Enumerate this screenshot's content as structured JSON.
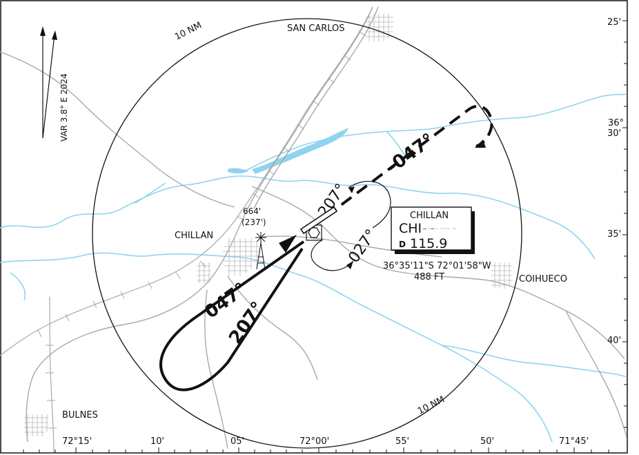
{
  "ring_labels": {
    "top": "10 NM",
    "bottom": "10 NM"
  },
  "variation": "VAR 3.8° E 2024",
  "towns": {
    "san_carlos": "SAN CARLOS",
    "chillan": "CHILLAN",
    "coihueco": "COIHUECO",
    "bulnes": "BULNES"
  },
  "obstacle": {
    "elevation": "664'",
    "height": "(237')"
  },
  "procedure": {
    "outbound_course": "047°",
    "inbound_course": "207°",
    "hold_inbound": "207°",
    "hold_outbound": "027°",
    "missed_course": "-047°"
  },
  "navaid": {
    "name": "CHILLAN",
    "ident": "CHI",
    "morse": "−·−· ···· ··",
    "prefix": "D",
    "frequency": "115.9",
    "coordinates": "36°35'11\"S 72°01'58\"W",
    "elevation": "488 FT"
  },
  "lat_labels": [
    {
      "deg": "",
      "min": "25'"
    },
    {
      "deg": "36°",
      "min": "30'"
    },
    {
      "deg": "",
      "min": "35'"
    },
    {
      "deg": "",
      "min": "40'"
    }
  ],
  "lon_labels": [
    "72°15'",
    "10'",
    "05'",
    "72°00'",
    "55'",
    "50'",
    "71°45'"
  ]
}
